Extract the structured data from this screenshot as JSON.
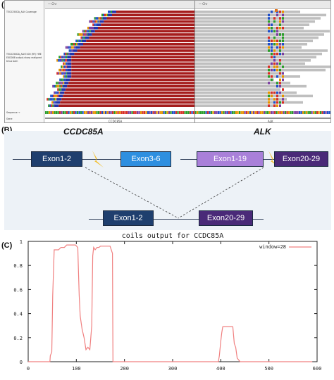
{
  "labels": {
    "a": "(A)",
    "b": "(B)",
    "c": "(C)"
  },
  "panel_a": {
    "locus_left": "— Chr",
    "locus_right": "— Chr",
    "sample_name": "TEC0250DA_ALK Coverage",
    "sample_detail": [
      "TEC0250DA_ALK7400 (RF) HRE",
      "EXD088 output.sharp realigned",
      "tmux bam"
    ],
    "sequence_label": "Sequence →",
    "gene_track_label": "Gene",
    "gene_left": "CCDC85A",
    "gene_right": "ALK"
  },
  "panel_b": {
    "gene_left": "CCDC85A",
    "gene_right": "ALK",
    "exons_top": [
      {
        "label": "Exon1-2",
        "color": "#1f3f6e"
      },
      {
        "label": "Exon3-6",
        "color": "#2e8fe0"
      },
      {
        "label": "Exon1-19",
        "color": "#a980d9"
      },
      {
        "label": "Exon20-29",
        "color": "#4a2a78"
      }
    ],
    "exons_fusion": [
      {
        "label": "Exon1-2",
        "color": "#1f3f6e"
      },
      {
        "label": "Exon20-29",
        "color": "#4a2a78"
      }
    ],
    "breakpoint_color": "#f2c23a"
  },
  "chart_data": {
    "type": "line",
    "title": "coils output for CCDC85A",
    "legend": "window=28",
    "legend_position": "top-right",
    "xlim": [
      0,
      600
    ],
    "ylim": [
      0,
      1
    ],
    "xticks": [
      "0",
      "100",
      "200",
      "300",
      "400",
      "500",
      "600"
    ],
    "yticks": [
      "0",
      "0.2",
      "0.4",
      "0.6",
      "0.8",
      "1"
    ],
    "color": "#f08080",
    "x": [
      0,
      45,
      46,
      49,
      51,
      54,
      63,
      68,
      75,
      80,
      95,
      98,
      103,
      104,
      106,
      108,
      112,
      116,
      120,
      124,
      128,
      132,
      134,
      136,
      139,
      143,
      147,
      150,
      153,
      170,
      175,
      176,
      395,
      397,
      400,
      402,
      404,
      410,
      425,
      428,
      431,
      434,
      440,
      590
    ],
    "y": [
      0,
      0,
      0.05,
      0.08,
      0.55,
      0.93,
      0.93,
      0.95,
      0.95,
      0.97,
      0.97,
      0.97,
      0.95,
      0.8,
      0.55,
      0.38,
      0.27,
      0.2,
      0.1,
      0.12,
      0.1,
      0.3,
      0.88,
      0.95,
      0.93,
      0.95,
      0.95,
      0.96,
      0.96,
      0.96,
      0.9,
      0,
      0,
      0.05,
      0.17,
      0.24,
      0.29,
      0.29,
      0.29,
      0.15,
      0.12,
      0.03,
      0,
      0
    ]
  }
}
